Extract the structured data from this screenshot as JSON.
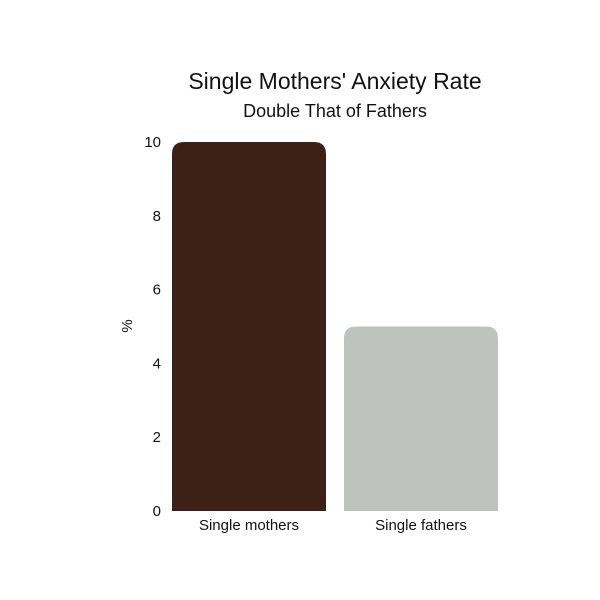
{
  "chart_data": {
    "type": "bar",
    "title": "Single Mothers' Anxiety Rate",
    "subtitle": "Double That of Fathers",
    "ylabel": "%",
    "xlabel": "",
    "categories": [
      "Single mothers",
      "Single fathers"
    ],
    "values": [
      10,
      5
    ],
    "colors": [
      "#3d2116",
      "#bec3c0"
    ],
    "ylim": [
      0,
      10
    ],
    "yticks": [
      "0",
      "2",
      "4",
      "6",
      "8",
      "10"
    ],
    "grid": false,
    "legend": false
  }
}
